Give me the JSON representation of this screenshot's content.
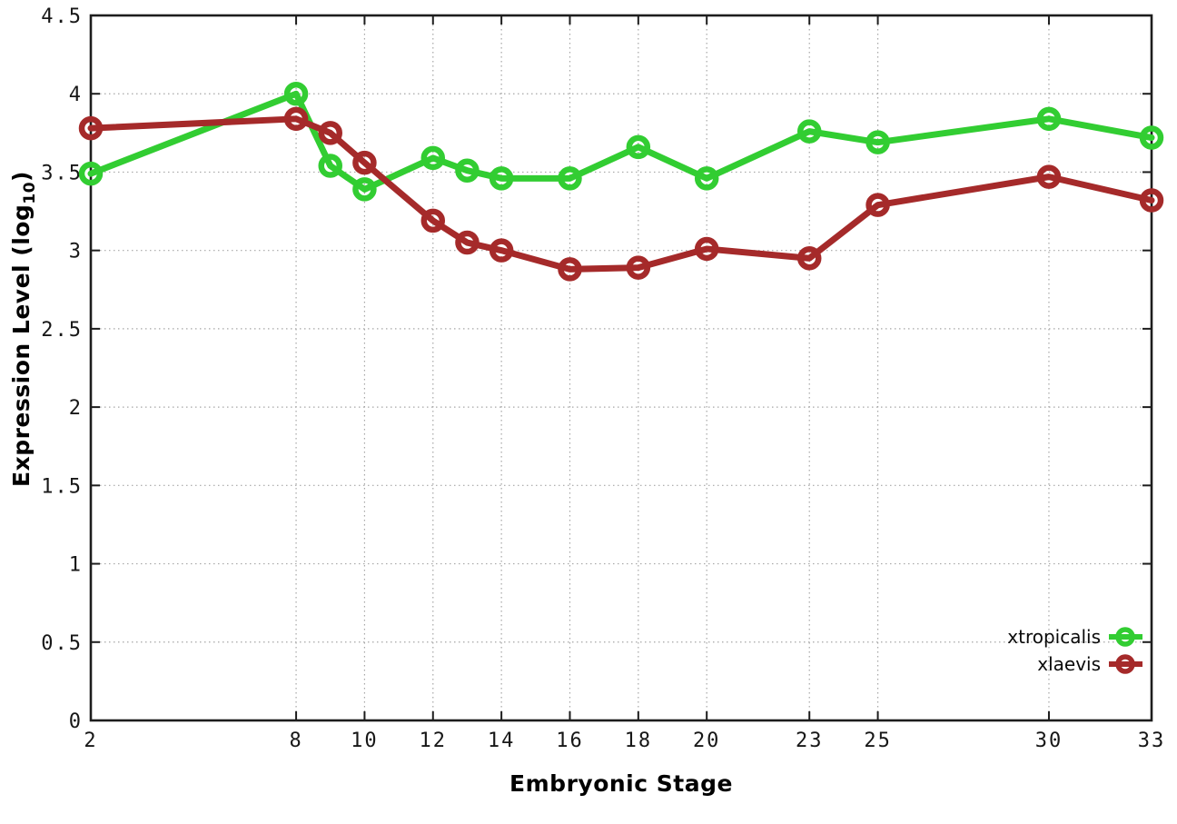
{
  "figure": {
    "background": "#ffffff",
    "xlabel": "Embryonic Stage",
    "ylabel_prefix": "Expression Level (log",
    "ylabel_sub": "10",
    "ylabel_suffix": ")"
  },
  "chart_data": {
    "type": "line",
    "title": "",
    "xlabel": "Embryonic Stage",
    "ylabel": "Expression Level (log10)",
    "x": [
      2,
      8,
      9,
      10,
      12,
      13,
      14,
      16,
      18,
      20,
      23,
      25,
      30,
      33
    ],
    "series": [
      {
        "name": "xtropicalis",
        "color": "#32cd32",
        "values": [
          3.49,
          4.0,
          3.54,
          3.39,
          3.59,
          3.51,
          3.46,
          3.46,
          3.66,
          3.46,
          3.76,
          3.69,
          3.84,
          3.72
        ]
      },
      {
        "name": "xlaevis",
        "color": "#a52a2a",
        "values": [
          3.78,
          3.84,
          3.75,
          3.56,
          3.19,
          3.05,
          3.0,
          2.88,
          2.89,
          3.01,
          2.95,
          3.29,
          3.47,
          3.32
        ]
      }
    ],
    "xlim": [
      2,
      33
    ],
    "ylim": [
      0,
      4.5
    ],
    "xtick_values": [
      2,
      8,
      10,
      12,
      14,
      16,
      18,
      20,
      23,
      25,
      30,
      33
    ],
    "xtick_labels": [
      "2",
      "8",
      "10",
      "12",
      "14",
      "16",
      "18",
      "20",
      "23",
      "25",
      "30",
      "33"
    ],
    "ytick_values": [
      0,
      0.5,
      1,
      1.5,
      2,
      2.5,
      3,
      3.5,
      4,
      4.5
    ],
    "ytick_labels": [
      "0",
      "0.5",
      "1",
      "1.5",
      "2",
      "2.5",
      "3",
      "3.5",
      "4",
      "4.5"
    ],
    "grid": true,
    "legend_position": "bottom-right",
    "marker": "open-circle"
  }
}
